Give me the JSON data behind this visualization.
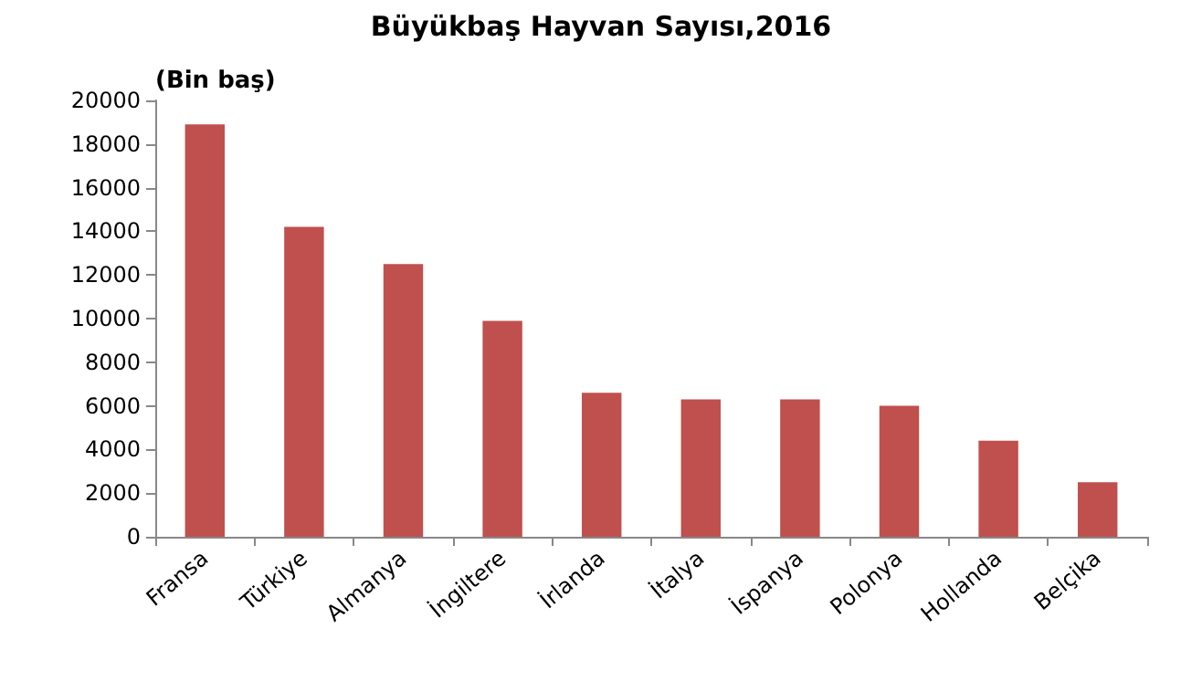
{
  "chart_data": {
    "type": "bar",
    "title": "Büyükbaş Hayvan Sayısı,2016",
    "ylabel": "(Bin baş)",
    "categories": [
      "Fransa",
      "Türkiye",
      "Almanya",
      "İngiltere",
      "İrlanda",
      "İtalya",
      "İspanya",
      "Polonya",
      "Hollanda",
      "Belçika"
    ],
    "values": [
      18900,
      14200,
      12500,
      9900,
      6600,
      6300,
      6300,
      6000,
      4400,
      2500
    ],
    "color": "#c0504d",
    "ylim": [
      0,
      20000
    ],
    "yticks": [
      0,
      2000,
      4000,
      6000,
      8000,
      10000,
      12000,
      14000,
      16000,
      18000,
      20000
    ],
    "grid": false
  }
}
